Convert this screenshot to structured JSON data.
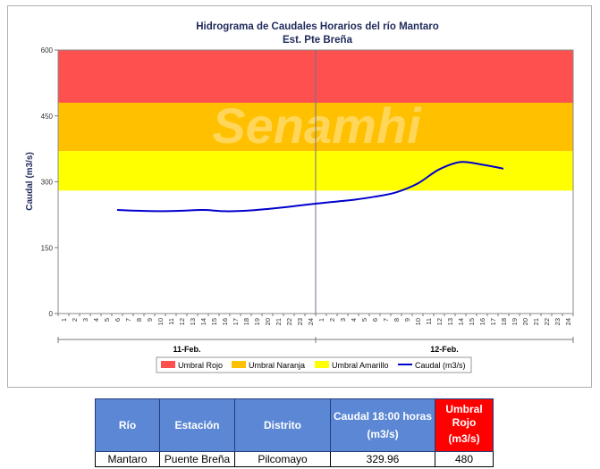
{
  "chart_data": {
    "type": "line",
    "title": "Hidrograma de Caudales Horarios del río Mantaro",
    "subtitle": "Est. Pte Breña",
    "ylabel": "Caudal  (m3/s)",
    "ylim": [
      0,
      600
    ],
    "yticks": [
      0,
      150,
      300,
      450,
      600
    ],
    "x_hour_labels": [
      "1",
      "2",
      "3",
      "4",
      "5",
      "6",
      "7",
      "8",
      "9",
      "10",
      "11",
      "12",
      "13",
      "14",
      "15",
      "16",
      "17",
      "18",
      "19",
      "20",
      "21",
      "22",
      "23",
      "24"
    ],
    "days": [
      "11-Feb.",
      "12-Feb."
    ],
    "bands": [
      {
        "name": "Umbral Rojo",
        "from": 480,
        "to": 600,
        "color": "#ff5050"
      },
      {
        "name": "Umbral Naranja",
        "from": 370,
        "to": 480,
        "color": "#ffc000"
      },
      {
        "name": "Umbral Amarillo",
        "from": 280,
        "to": 370,
        "color": "#ffff00"
      }
    ],
    "series": [
      {
        "name": "Caudal (m3/s)",
        "color": "#0000cc",
        "points": [
          {
            "day": 0,
            "hour": 6,
            "value": 236
          },
          {
            "day": 0,
            "hour": 8,
            "value": 234
          },
          {
            "day": 0,
            "hour": 10,
            "value": 233
          },
          {
            "day": 0,
            "hour": 12,
            "value": 234
          },
          {
            "day": 0,
            "hour": 14,
            "value": 236
          },
          {
            "day": 0,
            "hour": 16,
            "value": 233
          },
          {
            "day": 0,
            "hour": 18,
            "value": 234
          },
          {
            "day": 0,
            "hour": 20,
            "value": 238
          },
          {
            "day": 0,
            "hour": 22,
            "value": 243
          },
          {
            "day": 0,
            "hour": 24,
            "value": 249
          },
          {
            "day": 1,
            "hour": 2,
            "value": 254
          },
          {
            "day": 1,
            "hour": 4,
            "value": 259
          },
          {
            "day": 1,
            "hour": 6,
            "value": 266
          },
          {
            "day": 1,
            "hour": 8,
            "value": 276
          },
          {
            "day": 1,
            "hour": 10,
            "value": 296
          },
          {
            "day": 1,
            "hour": 12,
            "value": 328
          },
          {
            "day": 1,
            "hour": 14,
            "value": 345
          },
          {
            "day": 1,
            "hour": 16,
            "value": 339
          },
          {
            "day": 1,
            "hour": 18,
            "value": 330
          }
        ]
      }
    ],
    "legend": {
      "position": "bottom",
      "entries": [
        "Umbral Rojo",
        "Umbral Naranja",
        "Umbral Amarillo",
        "Caudal (m3/s)"
      ]
    },
    "watermark": "Senamhi",
    "grid": false
  },
  "table": {
    "headers": {
      "rio": "Río",
      "estacion": "Estación",
      "distrito": "Distrito",
      "caudal_line1": "Caudal 18:00 horas",
      "caudal_line2": "(m3/s)",
      "umbral_line1": "Umbral",
      "umbral_line2": "Rojo",
      "umbral_line3": "(m3/s)"
    },
    "row": {
      "rio": "Mantaro",
      "estacion": "Puente Breña",
      "distrito": "Pilcomayo",
      "caudal": "329.96",
      "umbral": "480"
    }
  }
}
